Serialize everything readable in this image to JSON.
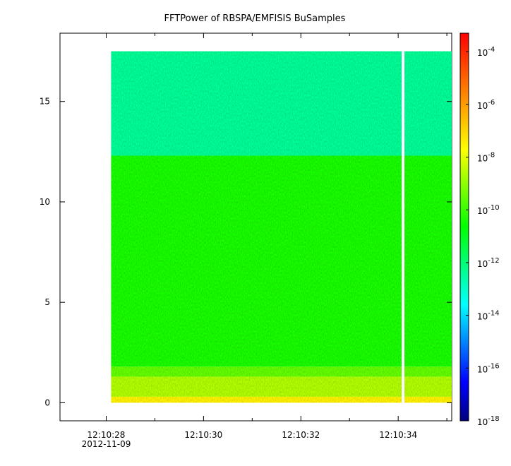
{
  "chart_data": {
    "type": "heatmap",
    "title": "FFTPower of RBSPA/EMFISIS  BuSamples",
    "xlabel": "",
    "ylabel": "",
    "x_range": [
      "12:10:27.05",
      "12:10:35.1"
    ],
    "ylim": [
      -0.9,
      18.4
    ],
    "x_ticks": [
      {
        "value": "12:10:28",
        "label": "12:10:28",
        "sublabel": "2012-11-09"
      },
      {
        "value": "12:10:30",
        "label": "12:10:30"
      },
      {
        "value": "12:10:32",
        "label": "12:10:32"
      },
      {
        "value": "12:10:34",
        "label": "12:10:34"
      }
    ],
    "x_minor_ticks": [
      "12:10:29",
      "12:10:31",
      "12:10:33",
      "12:10:35"
    ],
    "y_ticks": [
      0,
      5,
      10,
      15
    ],
    "data_coverage": {
      "x_start": "12:10:28.1",
      "x_end": "12:10:35.1",
      "y_start": 0,
      "y_end": 17.5,
      "gap_at": "12:10:34.1"
    },
    "bands": [
      {
        "y_from": 0.0,
        "y_to": 0.3,
        "log10_power": -7.5
      },
      {
        "y_from": 0.3,
        "y_to": 1.3,
        "log10_power": -8.6
      },
      {
        "y_from": 1.3,
        "y_to": 1.8,
        "log10_power": -9.5
      },
      {
        "y_from": 1.8,
        "y_to": 12.3,
        "log10_power": -10.3
      },
      {
        "y_from": 12.3,
        "y_to": 17.5,
        "log10_power": -12.4
      }
    ],
    "colorbar": {
      "scale": "log",
      "range": [
        -18,
        -3.3
      ],
      "ticks": [
        -4,
        -6,
        -8,
        -10,
        -12,
        -14,
        -16,
        -18
      ],
      "tick_labels": [
        {
          "base": "10",
          "exp": "-4"
        },
        {
          "base": "10",
          "exp": "-6"
        },
        {
          "base": "10",
          "exp": "-8"
        },
        {
          "base": "10",
          "exp": "-10"
        },
        {
          "base": "10",
          "exp": "-12"
        },
        {
          "base": "10",
          "exp": "-14"
        },
        {
          "base": "10",
          "exp": "-16"
        },
        {
          "base": "10",
          "exp": "-18"
        }
      ],
      "colormap": [
        "#000080",
        "#0000ff",
        "#0080ff",
        "#00ffff",
        "#00ff80",
        "#00ff00",
        "#80ff00",
        "#ffff00",
        "#ffaa00",
        "#ff5500",
        "#ff0000"
      ]
    }
  }
}
